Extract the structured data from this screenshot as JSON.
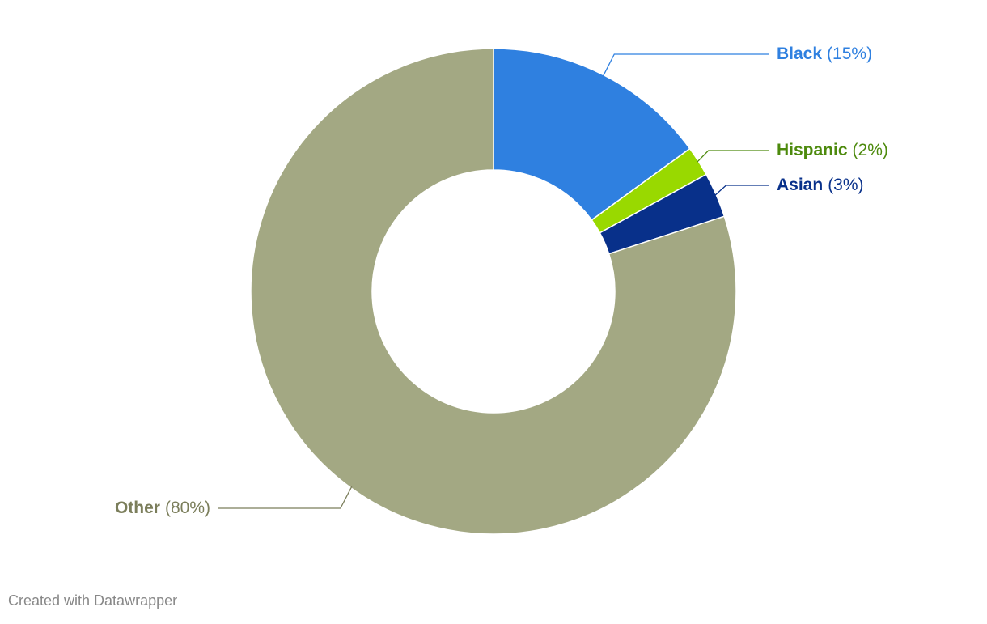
{
  "chart_data": {
    "type": "donut",
    "categories": [
      "Black",
      "Hispanic",
      "Asian",
      "Other"
    ],
    "values": [
      15,
      2,
      3,
      80
    ],
    "value_labels": [
      "(15%)",
      "(2%)",
      "(3%)",
      "(80%)"
    ],
    "colors": [
      "#2f80e0",
      "#99d900",
      "#08308a",
      "#a3a883"
    ],
    "label_colors": [
      "#2f80e0",
      "#4d8a0d",
      "#08308a",
      "#7b7e5b"
    ],
    "credit": "Created with Datawrapper"
  }
}
